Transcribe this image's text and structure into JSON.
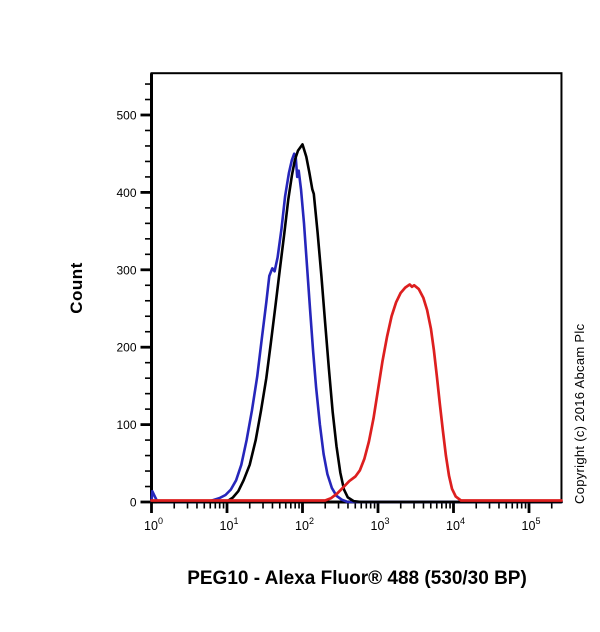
{
  "chart_data": {
    "type": "line",
    "subtype": "flow-cytometry-histogram",
    "title": "",
    "xlabel": "PEG10 - Alexa Fluor® 488 (530/30 BP)",
    "ylabel": "Count",
    "copyright": "Copyright (c) 2016 Abcam Plc",
    "grid": false,
    "legend": "none",
    "x_axis": {
      "scale": "log10",
      "max_log": 5.43,
      "major_exponents": [
        0,
        1,
        2,
        3,
        4,
        5
      ],
      "major_label_base": "10",
      "minor_mantissas": [
        2,
        3,
        4,
        5,
        6,
        7,
        8,
        9
      ]
    },
    "y_axis": {
      "major_ticks": [
        0,
        100,
        200,
        300,
        400,
        500
      ],
      "minor_step": 20,
      "minor_max": 540,
      "max_value": 554
    },
    "series": [
      {
        "name": "negative-control-blue",
        "color": "#2626bb",
        "stroke_width": 2.6,
        "peak_x": 80,
        "peak_count": 450,
        "points_logx_count": [
          [
            0,
            0
          ],
          [
            0.01,
            14
          ],
          [
            0.04,
            8
          ],
          [
            0.08,
            0
          ],
          [
            0.72,
            0
          ],
          [
            0.8,
            2
          ],
          [
            0.9,
            5
          ],
          [
            0.98,
            9
          ],
          [
            1.05,
            16
          ],
          [
            1.12,
            28
          ],
          [
            1.19,
            48
          ],
          [
            1.26,
            80
          ],
          [
            1.33,
            118
          ],
          [
            1.4,
            162
          ],
          [
            1.46,
            210
          ],
          [
            1.52,
            258
          ],
          [
            1.56,
            292
          ],
          [
            1.6,
            302
          ],
          [
            1.63,
            298
          ],
          [
            1.67,
            316
          ],
          [
            1.72,
            352
          ],
          [
            1.77,
            395
          ],
          [
            1.82,
            425
          ],
          [
            1.86,
            442
          ],
          [
            1.89,
            450
          ],
          [
            1.91,
            446
          ],
          [
            1.93,
            420
          ],
          [
            1.95,
            428
          ],
          [
            1.98,
            404
          ],
          [
            2.02,
            360
          ],
          [
            2.06,
            305
          ],
          [
            2.1,
            248
          ],
          [
            2.14,
            195
          ],
          [
            2.18,
            148
          ],
          [
            2.23,
            100
          ],
          [
            2.28,
            62
          ],
          [
            2.33,
            36
          ],
          [
            2.39,
            18
          ],
          [
            2.45,
            8
          ],
          [
            2.52,
            3
          ],
          [
            2.6,
            0
          ],
          [
            5.43,
            0
          ]
        ]
      },
      {
        "name": "unlabelled-control-black",
        "color": "#000000",
        "stroke_width": 2.6,
        "peak_x": 100,
        "peak_count": 462,
        "points_logx_count": [
          [
            0,
            0
          ],
          [
            0.95,
            0
          ],
          [
            1.02,
            2
          ],
          [
            1.08,
            6
          ],
          [
            1.15,
            14
          ],
          [
            1.22,
            28
          ],
          [
            1.3,
            48
          ],
          [
            1.38,
            80
          ],
          [
            1.45,
            118
          ],
          [
            1.52,
            160
          ],
          [
            1.58,
            205
          ],
          [
            1.64,
            252
          ],
          [
            1.7,
            300
          ],
          [
            1.76,
            348
          ],
          [
            1.81,
            390
          ],
          [
            1.86,
            422
          ],
          [
            1.9,
            442
          ],
          [
            1.94,
            454
          ],
          [
            2.0,
            462
          ],
          [
            2.05,
            446
          ],
          [
            2.09,
            426
          ],
          [
            2.13,
            404
          ],
          [
            2.15,
            398
          ],
          [
            2.2,
            348
          ],
          [
            2.25,
            292
          ],
          [
            2.3,
            232
          ],
          [
            2.35,
            172
          ],
          [
            2.4,
            116
          ],
          [
            2.45,
            72
          ],
          [
            2.5,
            38
          ],
          [
            2.55,
            16
          ],
          [
            2.6,
            6
          ],
          [
            2.68,
            1
          ],
          [
            2.78,
            0
          ],
          [
            5.43,
            0
          ]
        ]
      },
      {
        "name": "peg10-stained-red",
        "color": "#dd1f1f",
        "stroke_width": 2.7,
        "peak_x": 2600,
        "peak_count": 281,
        "points_logx_count": [
          [
            0,
            2
          ],
          [
            2.3,
            2
          ],
          [
            2.38,
            5
          ],
          [
            2.46,
            11
          ],
          [
            2.54,
            19
          ],
          [
            2.62,
            27
          ],
          [
            2.7,
            33
          ],
          [
            2.76,
            41
          ],
          [
            2.82,
            56
          ],
          [
            2.88,
            78
          ],
          [
            2.94,
            108
          ],
          [
            3.0,
            145
          ],
          [
            3.06,
            182
          ],
          [
            3.12,
            214
          ],
          [
            3.18,
            240
          ],
          [
            3.24,
            258
          ],
          [
            3.3,
            270
          ],
          [
            3.36,
            277
          ],
          [
            3.42,
            281
          ],
          [
            3.45,
            278
          ],
          [
            3.48,
            280
          ],
          [
            3.54,
            275
          ],
          [
            3.6,
            264
          ],
          [
            3.65,
            248
          ],
          [
            3.7,
            224
          ],
          [
            3.74,
            196
          ],
          [
            3.78,
            162
          ],
          [
            3.82,
            126
          ],
          [
            3.86,
            92
          ],
          [
            3.9,
            60
          ],
          [
            3.94,
            34
          ],
          [
            3.98,
            17
          ],
          [
            4.03,
            7
          ],
          [
            4.1,
            2
          ],
          [
            5.43,
            2
          ]
        ]
      }
    ]
  }
}
